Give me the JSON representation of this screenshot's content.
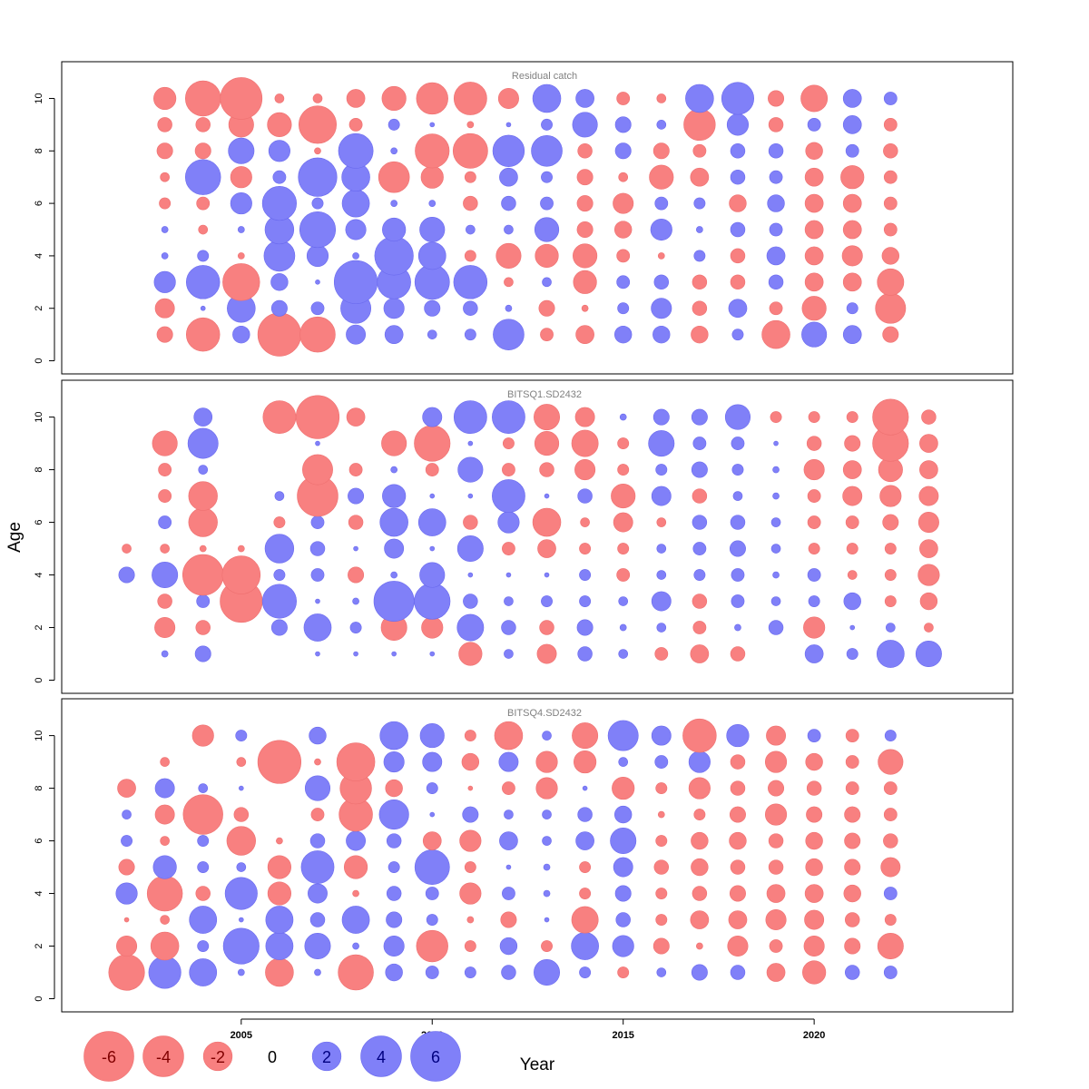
{
  "chart_data": {
    "type": "scatter",
    "xlabel": "Year",
    "ylabel": "Age",
    "x_ticks": [
      2005,
      2010,
      2015,
      2020
    ],
    "y_ticks": [
      0,
      2,
      4,
      6,
      8,
      10
    ],
    "xlim": [
      2000.3,
      2025.2
    ],
    "ylim": [
      -0.5,
      11.4
    ],
    "colors": {
      "positive": "#8080f8",
      "negative": "#f88080",
      "positive_stroke": "#6a6aee",
      "negative_stroke": "#ee7070",
      "panel_title": "#808080"
    },
    "legend": [
      {
        "value": -6,
        "label": "-6"
      },
      {
        "value": -4,
        "label": "-4"
      },
      {
        "value": -2,
        "label": "-2"
      },
      {
        "value": 0,
        "label": "0"
      },
      {
        "value": 2,
        "label": "2"
      },
      {
        "value": 4,
        "label": "4"
      },
      {
        "value": 6,
        "label": "6"
      }
    ],
    "panels": [
      {
        "title": "Residual catch",
        "years": [
          2003,
          2004,
          2005,
          2006,
          2007,
          2008,
          2009,
          2010,
          2011,
          2012,
          2013,
          2014,
          2015,
          2016,
          2017,
          2018,
          2019,
          2020,
          2021,
          2022
        ],
        "ages": [
          1,
          2,
          3,
          4,
          5,
          6,
          7,
          8,
          9,
          10
        ],
        "residuals": [
          [
            -0.6,
            -0.9,
            1.1,
            0.1,
            0.1,
            -0.3,
            -0.2,
            -0.6,
            -0.5,
            -1.2
          ],
          [
            -2.7,
            0.05,
            2.7,
            0.3,
            -0.2,
            -0.4,
            3.0,
            -0.6,
            -0.5,
            -3.0
          ],
          [
            0.7,
            1.9,
            -3.3,
            -0.1,
            0.1,
            1.1,
            -1.1,
            1.6,
            -1.5,
            -4.2
          ],
          [
            -4.5,
            0.6,
            0.7,
            2.3,
            2.0,
            2.8,
            0.4,
            1.1,
            -1.4,
            -0.2
          ],
          [
            -3.0,
            0.4,
            0.05,
            1.1,
            3.1,
            0.3,
            3.6,
            -0.1,
            -3.4,
            -0.2
          ],
          [
            0.9,
            2.2,
            4.5,
            0.1,
            1.0,
            1.8,
            1.9,
            2.9,
            -0.4,
            -0.8
          ],
          [
            0.8,
            1.0,
            2.7,
            3.6,
            1.3,
            0.1,
            -2.3,
            0.1,
            0.3,
            -1.4
          ],
          [
            0.2,
            0.6,
            2.9,
            1.8,
            1.5,
            0.1,
            -1.2,
            -2.8,
            0.05,
            -2.4
          ],
          [
            0.3,
            0.5,
            2.7,
            -0.3,
            0.2,
            -0.5,
            -0.3,
            -2.9,
            -0.1,
            -2.6
          ],
          [
            2.3,
            0.1,
            -0.2,
            -1.5,
            0.2,
            0.5,
            0.8,
            2.4,
            0.05,
            -1.0
          ],
          [
            -0.4,
            -0.6,
            0.2,
            -1.3,
            1.4,
            0.4,
            0.3,
            2.3,
            0.3,
            1.9
          ],
          [
            -0.8,
            -0.1,
            -1.3,
            -1.4,
            -0.6,
            -0.6,
            -0.6,
            -0.5,
            1.5,
            0.8
          ],
          [
            0.7,
            0.3,
            0.4,
            -0.4,
            -0.7,
            -1.0,
            -0.2,
            0.6,
            0.6,
            -0.4
          ],
          [
            0.7,
            1.0,
            0.5,
            -0.1,
            1.1,
            0.4,
            -1.4,
            -0.6,
            0.2,
            -0.2
          ],
          [
            -0.7,
            -0.5,
            -0.5,
            0.3,
            0.1,
            0.3,
            -0.8,
            -0.4,
            -2.4,
            1.9
          ],
          [
            0.3,
            0.8,
            -0.5,
            -0.5,
            0.5,
            -0.7,
            0.5,
            0.5,
            1.1,
            2.5
          ],
          [
            -1.9,
            -0.4,
            0.5,
            0.8,
            0.4,
            0.7,
            0.4,
            0.5,
            -0.5,
            -0.6
          ],
          [
            1.5,
            -1.4,
            -0.8,
            -0.8,
            -0.8,
            -0.8,
            -0.8,
            -0.7,
            0.4,
            -1.7
          ],
          [
            0.8,
            0.3,
            -0.8,
            -1.0,
            -0.8,
            -0.8,
            -1.3,
            0.4,
            0.8,
            0.8
          ],
          [
            -0.6,
            -2.2,
            -1.7,
            -0.7,
            -0.4,
            -0.4,
            -0.4,
            -0.5,
            -0.4,
            0.4
          ]
        ]
      },
      {
        "title": "BITSQ1.SD2432",
        "years": [
          2002,
          2003,
          2004,
          2005,
          2006,
          2007,
          2008,
          2009,
          2010,
          2011,
          2012,
          2013,
          2014,
          2015,
          2016,
          2017,
          2018,
          2019,
          2020,
          2021,
          2022,
          2023
        ],
        "ages": [
          1,
          2,
          3,
          4,
          5,
          6,
          7,
          8,
          9,
          10
        ],
        "residuals": [
          [
            null,
            null,
            null,
            0.6,
            -0.2,
            null,
            null,
            null,
            null,
            null
          ],
          [
            0.1,
            -1.0,
            -0.5,
            1.6,
            -0.2,
            0.4,
            -0.4,
            -0.4,
            -1.5,
            null
          ],
          [
            0.6,
            -0.5,
            0.4,
            -4.0,
            -0.1,
            -2.0,
            -2.0,
            0.2,
            2.2,
            0.8
          ],
          [
            null,
            null,
            -4.3,
            -3.5,
            -0.1,
            null,
            null,
            null,
            null,
            null
          ],
          [
            null,
            0.6,
            2.8,
            0.3,
            2.0,
            -0.3,
            0.2,
            null,
            null,
            -2.6
          ],
          [
            0.05,
            1.8,
            0.05,
            0.4,
            0.5,
            0.4,
            -4.0,
            -2.2,
            0.05,
            -4.5
          ],
          [
            0.05,
            0.3,
            0.1,
            -0.6,
            0.05,
            -0.5,
            0.6,
            -0.4,
            null,
            -0.8
          ],
          [
            0.05,
            -1.6,
            3.9,
            0.1,
            0.9,
            1.9,
            1.3,
            0.1,
            -1.5,
            null
          ],
          [
            0.05,
            -1.1,
            3.1,
            1.5,
            0.05,
            1.8,
            0.05,
            -0.4,
            -3.1,
            0.9
          ],
          [
            -1.3,
            1.7,
            0.5,
            0.05,
            1.6,
            -0.5,
            0.05,
            1.5,
            0.05,
            2.6
          ],
          [
            0.2,
            0.5,
            0.2,
            0.05,
            -0.4,
            1.1,
            2.6,
            -0.4,
            -0.3,
            2.6
          ],
          [
            -0.9,
            -0.5,
            0.3,
            0.05,
            -0.8,
            -1.9,
            0.05,
            -0.5,
            -1.4,
            -1.6
          ],
          [
            0.5,
            0.6,
            0.3,
            0.3,
            -0.3,
            -0.2,
            0.5,
            -1.0,
            -1.7,
            -0.9
          ],
          [
            0.2,
            0.1,
            0.2,
            -0.4,
            -0.3,
            -0.9,
            -1.4,
            -0.3,
            -0.3,
            0.1
          ],
          [
            -0.4,
            0.2,
            0.9,
            0.2,
            0.2,
            -0.2,
            0.9,
            0.3,
            1.6,
            0.6
          ],
          [
            -0.8,
            -0.4,
            -0.5,
            0.3,
            0.4,
            0.5,
            -0.5,
            0.6,
            0.4,
            0.6
          ],
          [
            -0.5,
            0.1,
            0.4,
            0.4,
            0.6,
            0.5,
            0.2,
            0.3,
            0.4,
            1.5
          ],
          [
            null,
            0.5,
            0.2,
            0.1,
            0.2,
            0.2,
            0.1,
            0.1,
            0.05,
            -0.3
          ],
          [
            0.8,
            -1.1,
            0.3,
            0.4,
            -0.3,
            -0.4,
            -0.4,
            -1.0,
            -0.5,
            -0.3
          ],
          [
            0.3,
            0.05,
            0.7,
            -0.2,
            -0.3,
            -0.4,
            -0.9,
            -0.8,
            -0.6,
            -0.3
          ],
          [
            1.8,
            0.2,
            -0.3,
            -0.3,
            -0.3,
            -0.6,
            -1.1,
            -1.4,
            -3.1,
            -3.1
          ],
          [
            1.6,
            -0.2,
            -0.7,
            -1.1,
            -0.8,
            -1.0,
            -0.9,
            -0.8,
            -0.8,
            -0.5
          ]
        ]
      },
      {
        "title": "BITSQ4.SD2432",
        "years": [
          2002,
          2003,
          2004,
          2005,
          2006,
          2007,
          2008,
          2009,
          2010,
          2011,
          2012,
          2013,
          2014,
          2015,
          2016,
          2017,
          2018,
          2019,
          2020,
          2021,
          2022
        ],
        "ages": [
          1,
          2,
          3,
          4,
          5,
          6,
          7,
          8,
          9,
          10
        ],
        "residuals": [
          [
            -3.1,
            -1.0,
            -0.05,
            1.1,
            -0.6,
            0.3,
            0.2,
            -0.8,
            null,
            null
          ],
          [
            2.5,
            -1.9,
            -0.2,
            -3.0,
            1.3,
            -0.2,
            -0.9,
            0.9,
            -0.2,
            null
          ],
          [
            1.8,
            0.3,
            1.8,
            -0.5,
            0.3,
            0.3,
            -3.8,
            0.2,
            null,
            -1.1
          ],
          [
            0.1,
            3.1,
            0.05,
            2.5,
            0.2,
            -2.0,
            -0.5,
            0.05,
            -0.2,
            0.3
          ],
          [
            -1.9,
            1.8,
            1.8,
            -1.3,
            -1.3,
            -0.1,
            null,
            null,
            -4.5,
            null
          ],
          [
            0.1,
            1.6,
            0.5,
            0.9,
            2.6,
            0.5,
            -0.4,
            1.5,
            -0.1,
            0.7
          ],
          [
            -3.0,
            0.1,
            1.8,
            -0.1,
            -1.3,
            0.9,
            -2.7,
            -2.4,
            -3.5,
            null
          ],
          [
            0.7,
            1.0,
            0.6,
            0.5,
            0.3,
            0.5,
            2.1,
            -0.7,
            1.0,
            1.9
          ],
          [
            0.4,
            -2.4,
            0.3,
            0.4,
            2.9,
            -0.8,
            0.05,
            0.3,
            0.9,
            1.4
          ],
          [
            0.3,
            -0.3,
            -0.1,
            -1.1,
            -0.3,
            -1.1,
            0.6,
            -0.05,
            -0.7,
            -0.3
          ],
          [
            0.5,
            0.7,
            -0.6,
            0.4,
            0.05,
            0.8,
            0.2,
            -0.4,
            0.9,
            -1.9
          ],
          [
            1.6,
            -0.3,
            0.05,
            0.1,
            0.1,
            0.2,
            0.2,
            -1.1,
            -1.1,
            0.2
          ],
          [
            0.3,
            1.8,
            -1.7,
            -0.3,
            -0.3,
            0.8,
            0.5,
            0.05,
            -1.2,
            -1.6
          ],
          [
            -0.3,
            1.1,
            0.5,
            0.6,
            0.9,
            1.6,
            0.7,
            -1.2,
            0.2,
            2.2
          ],
          [
            0.2,
            -0.6,
            -0.3,
            -0.3,
            -0.5,
            -0.3,
            -0.1,
            -0.3,
            0.4,
            0.9
          ],
          [
            0.6,
            -0.1,
            -0.8,
            -0.5,
            -0.7,
            -0.7,
            -0.3,
            -1.1,
            1.1,
            -2.7
          ],
          [
            0.5,
            -1.0,
            -0.8,
            -0.6,
            -0.5,
            -0.7,
            -0.6,
            -0.5,
            -0.5,
            1.2
          ],
          [
            -0.8,
            -0.4,
            -1.0,
            -0.8,
            -0.5,
            -0.5,
            -1.1,
            -0.6,
            -1.1,
            -0.9
          ],
          [
            -1.3,
            -1.0,
            -0.9,
            -0.8,
            -0.7,
            -0.7,
            -0.6,
            -0.5,
            -0.7,
            0.4
          ],
          [
            0.5,
            -0.6,
            -0.5,
            -0.7,
            -0.6,
            -0.6,
            -0.6,
            -0.4,
            -0.4,
            -0.4
          ],
          [
            0.4,
            -1.6,
            -0.3,
            0.4,
            -0.9,
            -0.5,
            -0.4,
            -0.4,
            -1.5,
            0.3
          ]
        ]
      }
    ]
  }
}
